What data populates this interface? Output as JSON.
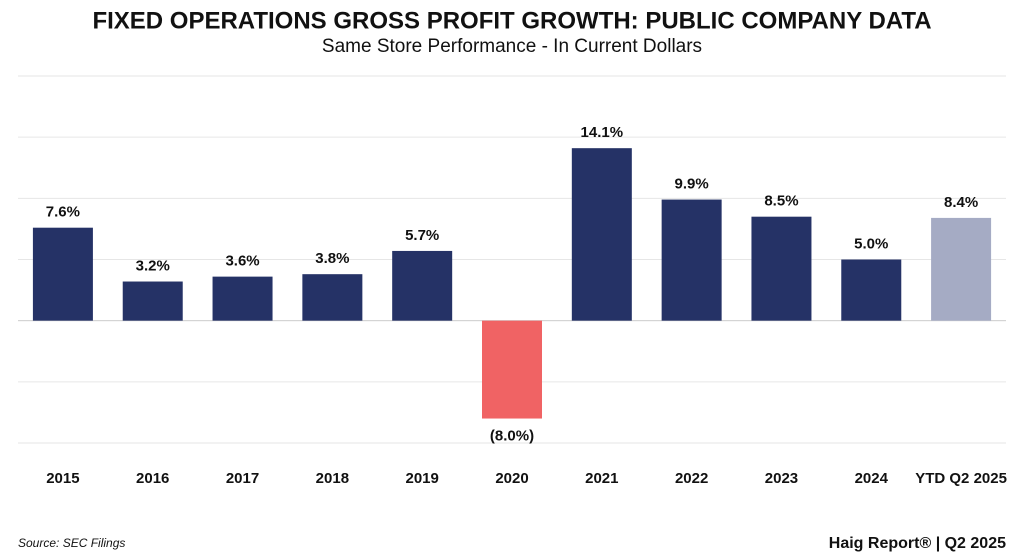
{
  "chart_data": {
    "type": "bar",
    "title": "FIXED OPERATIONS GROSS PROFIT GROWTH: PUBLIC COMPANY DATA",
    "subtitle": "Same Store Performance - In Current Dollars",
    "categories": [
      "2015",
      "2016",
      "2017",
      "2018",
      "2019",
      "2020",
      "2021",
      "2022",
      "2023",
      "2024",
      "YTD Q2 2025"
    ],
    "values": [
      7.6,
      3.2,
      3.6,
      3.8,
      5.7,
      -8.0,
      14.1,
      9.9,
      8.5,
      5.0,
      8.4
    ],
    "value_labels": [
      "7.6%",
      "3.2%",
      "3.6%",
      "3.8%",
      "5.7%",
      "(8.0%)",
      "14.1%",
      "9.9%",
      "8.5%",
      "5.0%",
      "8.4%"
    ],
    "colors": [
      "#253266",
      "#253266",
      "#253266",
      "#253266",
      "#253266",
      "#f06364",
      "#253266",
      "#253266",
      "#253266",
      "#253266",
      "#a5abc4"
    ],
    "ylim": [
      -10,
      20
    ],
    "yticks": [
      -10,
      -5,
      0,
      5,
      10,
      15,
      20
    ],
    "grid": true,
    "source": "Source: SEC Filings",
    "brand": "Haig Report® | Q2 2025"
  }
}
